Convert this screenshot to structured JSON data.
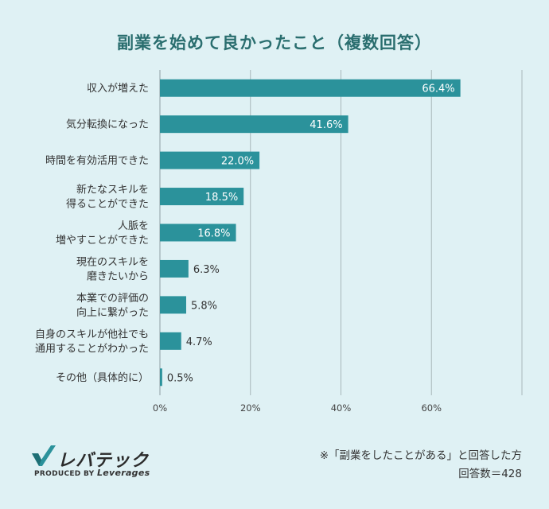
{
  "chart_data": {
    "type": "bar",
    "orientation": "horizontal",
    "title": "副業を始めて良かったこと（複数回答）",
    "categories": [
      [
        "収入が増えた"
      ],
      [
        "気分転換になった"
      ],
      [
        "時間を有効活用できた"
      ],
      [
        "新たなスキルを",
        "得ることができた"
      ],
      [
        "人脈を",
        "増やすことができた"
      ],
      [
        "現在のスキルを",
        "磨きたいから"
      ],
      [
        "本業での評価の",
        "向上に繋がった"
      ],
      [
        "自身のスキルが他社でも",
        "通用することがわかった"
      ],
      [
        "その他（具体的に）"
      ]
    ],
    "values": [
      66.4,
      41.6,
      22.0,
      18.5,
      16.8,
      6.3,
      5.8,
      4.7,
      0.5
    ],
    "value_labels": [
      "66.4%",
      "41.6%",
      "22.0%",
      "18.5%",
      "16.8%",
      "6.3%",
      "5.8%",
      "4.7%",
      "0.5%"
    ],
    "xlim": [
      0,
      80
    ],
    "xticks": [
      0,
      20,
      40,
      60
    ],
    "xtick_labels": [
      "0%",
      "20%",
      "40%",
      "60%"
    ],
    "grid": true,
    "xlabel": "",
    "ylabel": "",
    "bar_color": "#2b929b"
  },
  "logo": {
    "name": "レバテック",
    "produced_by": "PRODUCED BY",
    "brand": "Leverages"
  },
  "note": {
    "line1": "※「副業をしたことがある」と回答した方",
    "line2": "回答数＝428"
  }
}
